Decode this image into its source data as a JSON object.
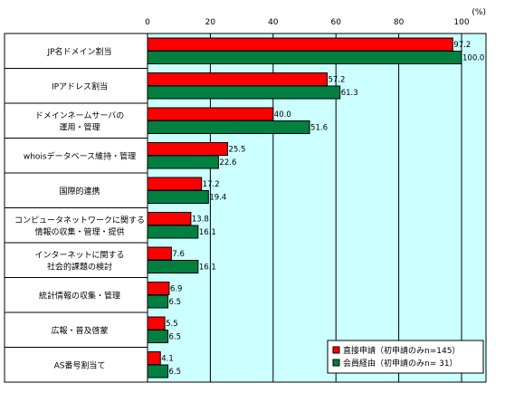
{
  "chart_data": {
    "type": "bar",
    "orientation": "horizontal",
    "unit_label": "(%)",
    "xlim": [
      0,
      100
    ],
    "x_ticks": [
      "0",
      "20",
      "40",
      "60",
      "80",
      "100"
    ],
    "categories": [
      [
        "JP名ドメイン割当"
      ],
      [
        "IPアドレス割当"
      ],
      [
        "ドメインネームサーバの",
        "運用・管理"
      ],
      [
        "whoisデータベース維持・管理"
      ],
      [
        "国際的連携"
      ],
      [
        "コンピュータネットワークに関する",
        "情報の収集・管理・提供"
      ],
      [
        "インターネットに関する",
        "社会的課題の検討"
      ],
      [
        "統計情報の収集・管理"
      ],
      [
        "広報・普及啓蒙"
      ],
      [
        "AS番号割当て"
      ]
    ],
    "series": [
      {
        "name": "直接申請（初申請のみn=145）",
        "color": "#ff0000",
        "values": [
          97.2,
          57.2,
          40.0,
          25.5,
          17.2,
          13.8,
          7.6,
          6.9,
          5.5,
          4.1
        ],
        "labels": [
          "97.2",
          "57.2",
          "40.0",
          "25.5",
          "17.2",
          "13.8",
          "7.6",
          "6.9",
          "5.5",
          "4.1"
        ]
      },
      {
        "name": "会員経由（初申請のみn= 31）",
        "color": "#008040",
        "values": [
          100.0,
          61.3,
          51.6,
          22.6,
          19.4,
          16.1,
          16.1,
          6.5,
          6.5,
          6.5
        ],
        "labels": [
          "100.0",
          "61.3",
          "51.6",
          "22.6",
          "19.4",
          "16.1",
          "16.1",
          "6.5",
          "6.5",
          "6.5"
        ]
      }
    ],
    "legend_position": "bottom-right",
    "plot_background": "#ccffff"
  }
}
